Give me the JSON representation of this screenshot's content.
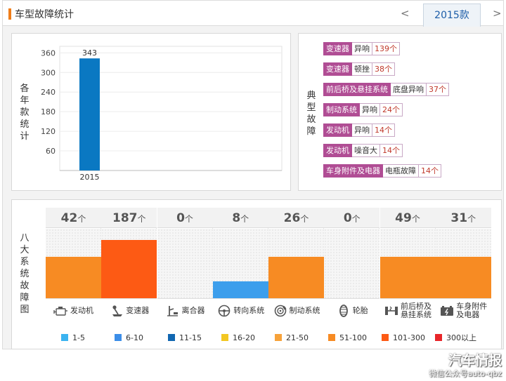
{
  "header": {
    "title": "车型故障统计",
    "prev": "<",
    "year": "2015款",
    "next": ">"
  },
  "yearly": {
    "ylabel": "各年款统计"
  },
  "typical": {
    "label": "典型故障"
  },
  "faults": [
    {
      "system": "变速器",
      "symptom": "异响",
      "count": "139个"
    },
    {
      "system": "变速器",
      "symptom": "顿挫",
      "count": "38个"
    },
    {
      "system": "前后桥及悬挂系统",
      "symptom": "底盘异响",
      "count": "37个"
    },
    {
      "system": "制动系统",
      "symptom": "异响",
      "count": "24个"
    },
    {
      "system": "发动机",
      "symptom": "异响",
      "count": "14个"
    },
    {
      "system": "发动机",
      "symptom": "噪音大",
      "count": "14个"
    },
    {
      "system": "车身附件及电器",
      "symptom": "电瓶故障",
      "count": "14个"
    }
  ],
  "systems": {
    "label": "八大系统故障图",
    "unit": "个"
  },
  "chart_data": [
    {
      "type": "bar",
      "categories": [
        "2015"
      ],
      "values": [
        343
      ],
      "ylabel": "各年款统计",
      "ylim": [
        0,
        380
      ],
      "yticks": [
        60,
        120,
        180,
        240,
        300,
        360
      ],
      "grid": true,
      "bar_color": "#0a78c2"
    },
    {
      "type": "bar",
      "categories": [
        "发动机",
        "变速器",
        "离合器",
        "转向系统",
        "制动系统",
        "轮胎",
        "前后桥及悬挂系统",
        "车身附件及电器"
      ],
      "category_labels": [
        [
          "发动机"
        ],
        [
          "变速器"
        ],
        [
          "离合器"
        ],
        [
          "转向系统"
        ],
        [
          "制动系统"
        ],
        [
          "轮胎"
        ],
        [
          "前后桥及",
          "悬挂系统"
        ],
        [
          "车身附件",
          "及电器"
        ]
      ],
      "values": [
        42,
        187,
        0,
        8,
        26,
        0,
        49,
        31
      ],
      "bar_levels": [
        0.6,
        0.84,
        0,
        0.24,
        0.6,
        0,
        0.6,
        0.6
      ],
      "bar_colors": [
        "#f78b23",
        "#fd5a14",
        "",
        "#3c9eec",
        "#f78b23",
        "",
        "#f78b23",
        "#f78b23"
      ],
      "icons": [
        "engine-icon",
        "gearshift-icon",
        "clutch-icon",
        "steering-wheel-icon",
        "brake-disc-icon",
        "tire-icon",
        "suspension-icon",
        "battery-icon"
      ],
      "legend": [
        {
          "label": "1-5",
          "color": "#3bb3f0"
        },
        {
          "label": "6-10",
          "color": "#3c8ee8"
        },
        {
          "label": "11-15",
          "color": "#1167b1"
        },
        {
          "label": "16-20",
          "color": "#f3c722"
        },
        {
          "label": "21-50",
          "color": "#f7a23a"
        },
        {
          "label": "51-100",
          "color": "#f78b23"
        },
        {
          "label": "101-300",
          "color": "#fd5a14"
        },
        {
          "label": "300以上",
          "color": "#e8262a"
        }
      ]
    }
  ],
  "watermark": {
    "line1": "汽车情报",
    "line2": "微信公众号auto-qbz"
  }
}
